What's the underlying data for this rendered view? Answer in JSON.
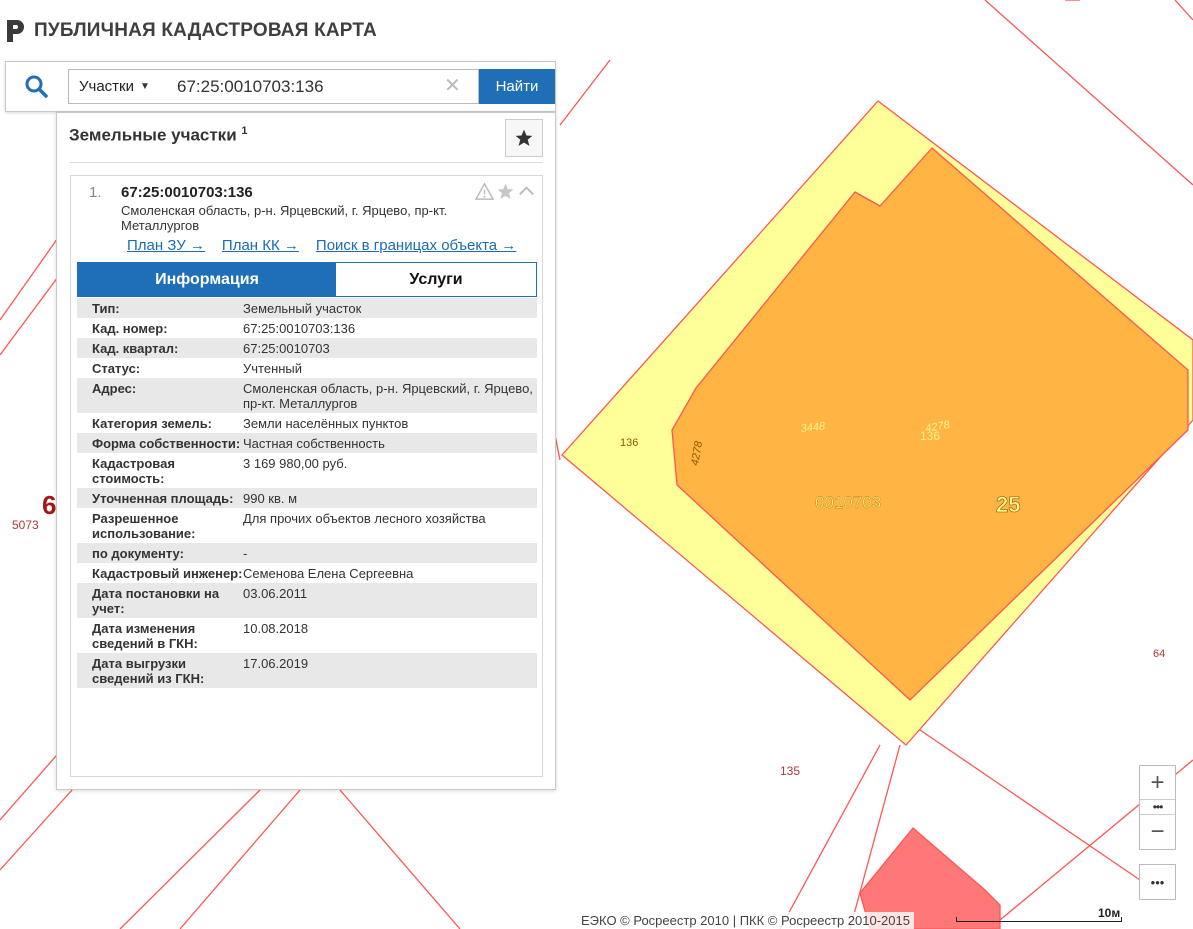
{
  "header": {
    "title": "ПУБЛИЧНАЯ КАДАСТРОВАЯ КАРТА",
    "logo_icon": "pkk-logo-icon"
  },
  "search": {
    "type_label": "Участки",
    "query": "67:25:0010703:136",
    "find_label": "Найти"
  },
  "panel": {
    "title": "Земельные участки",
    "count": "1",
    "result": {
      "index": "1.",
      "number": "67:25:0010703:136",
      "address": "Смоленская область, р-н. Ярцевский, г. Ярцево, пр-кт. Металлургов",
      "links": [
        "План ЗУ →",
        "План КК →",
        "Поиск в границах объекта →"
      ],
      "tabs": [
        "Информация",
        "Услуги"
      ],
      "rows": [
        {
          "key": "Тип:",
          "value": "Земельный участок"
        },
        {
          "key": "Кад. номер:",
          "value": "67:25:0010703:136"
        },
        {
          "key": "Кад. квартал:",
          "value": "67:25:0010703"
        },
        {
          "key": "Статус:",
          "value": "Учтенный"
        },
        {
          "key": "Адрес:",
          "value": "Смоленская область, р-н. Ярцевский, г. Ярцево, пр-кт. Металлургов"
        },
        {
          "key": "Категория земель:",
          "value": "Земли населённых пунктов"
        },
        {
          "key": "Форма собственности:",
          "value": "Частная собственность"
        },
        {
          "key": "Кадастровая стоимость:",
          "value": "3 169 980,00 руб."
        },
        {
          "key": "Уточненная площадь:",
          "value": "990 кв. м"
        },
        {
          "key": "Разрешенное использование:",
          "value": "Для прочих объектов лесного хозяйства"
        },
        {
          "key": "по документу:",
          "value": "-"
        },
        {
          "key": "Кадастровый инженер:",
          "value": "Семенова Елена Сергеевна"
        },
        {
          "key": "Дата постановки на учет:",
          "value": "03.06.2011"
        },
        {
          "key": "Дата изменения сведений в ГКН:",
          "value": "10.08.2018"
        },
        {
          "key": "Дата выгрузки сведений из ГКН:",
          "value": "17.06.2019"
        }
      ]
    }
  },
  "map": {
    "labels": {
      "l136a": "136",
      "l4278a": "4278",
      "l3448": "3448",
      "l4278b": "4278",
      "l136b": "136",
      "quarter": "0010703",
      "district": "25",
      "l5073": "5073",
      "l6": "6",
      "l64": "64",
      "l135": "135"
    },
    "colors": {
      "parcel": "#ffb444",
      "zone": "#ffff99",
      "boundary": "#ff5555",
      "building": "#ff7878"
    }
  },
  "controls": {
    "zoom_in": "+",
    "zoom_out": "−",
    "dots": "•••",
    "more": "•••"
  },
  "footer": {
    "attribution": "ЕЭКО © Росреестр 2010 | ПКК © Росреестр 2010-2015",
    "scale": "10м"
  }
}
